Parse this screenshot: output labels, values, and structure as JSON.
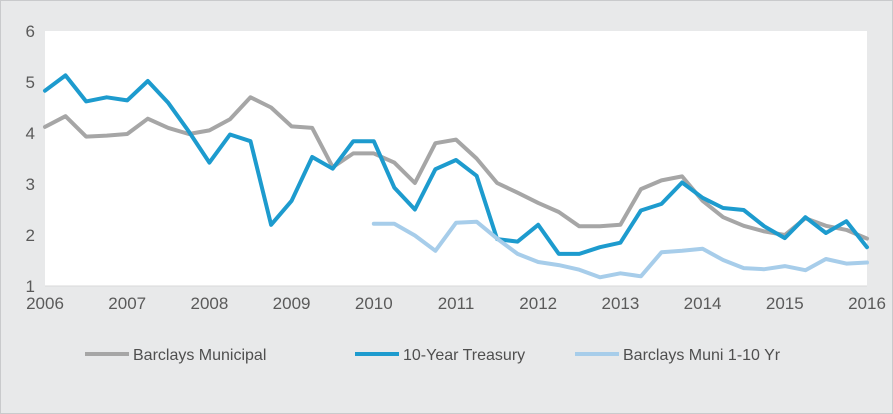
{
  "chart_data": {
    "type": "line",
    "xlim": [
      2006,
      2016
    ],
    "ylim": [
      1,
      6
    ],
    "x_ticks": [
      2006,
      2007,
      2008,
      2009,
      2010,
      2011,
      2012,
      2013,
      2014,
      2015,
      2016
    ],
    "x_tick_labels": [
      "2006",
      "2007",
      "2008",
      "2009",
      "2010",
      "2011",
      "2012",
      "2013",
      "2014",
      "2015",
      "2016"
    ],
    "y_ticks": [
      1,
      2,
      3,
      4,
      5,
      6
    ],
    "y_tick_labels": [
      "1",
      "2",
      "3",
      "4",
      "5",
      "6"
    ],
    "grid": false,
    "legend_position": "bottom",
    "series": [
      {
        "name": "Barclays Municipal",
        "color": "#a6a6a6",
        "x": [
          2006.0,
          2006.25,
          2006.5,
          2006.75,
          2007.0,
          2007.25,
          2007.5,
          2007.75,
          2008.0,
          2008.25,
          2008.5,
          2008.75,
          2009.0,
          2009.25,
          2009.5,
          2009.75,
          2010.0,
          2010.25,
          2010.5,
          2010.75,
          2011.0,
          2011.25,
          2011.5,
          2011.75,
          2012.0,
          2012.25,
          2012.5,
          2012.75,
          2013.0,
          2013.25,
          2013.5,
          2013.75,
          2014.0,
          2014.25,
          2014.5,
          2014.75,
          2015.0,
          2015.25,
          2015.5,
          2015.75,
          2016.0
        ],
        "values": [
          4.12,
          4.33,
          3.93,
          3.95,
          3.98,
          4.28,
          4.1,
          3.98,
          4.05,
          4.27,
          4.7,
          4.5,
          4.13,
          4.1,
          3.33,
          3.6,
          3.6,
          3.42,
          3.02,
          3.8,
          3.87,
          3.5,
          3.02,
          2.83,
          2.63,
          2.45,
          2.17,
          2.17,
          2.2,
          2.9,
          3.07,
          3.15,
          2.67,
          2.35,
          2.18,
          2.07,
          2.0,
          2.33,
          2.18,
          2.1,
          1.93
        ]
      },
      {
        "name": "10-Year Treasury",
        "color": "#1d9bce",
        "x": [
          2006.0,
          2006.25,
          2006.5,
          2006.75,
          2007.0,
          2007.25,
          2007.5,
          2007.75,
          2008.0,
          2008.25,
          2008.5,
          2008.75,
          2009.0,
          2009.25,
          2009.5,
          2009.75,
          2010.0,
          2010.25,
          2010.5,
          2010.75,
          2011.0,
          2011.25,
          2011.5,
          2011.75,
          2012.0,
          2012.25,
          2012.5,
          2012.75,
          2013.0,
          2013.25,
          2013.5,
          2013.75,
          2014.0,
          2014.25,
          2014.5,
          2014.75,
          2015.0,
          2015.25,
          2015.5,
          2015.75,
          2016.0
        ],
        "values": [
          4.83,
          5.13,
          4.62,
          4.7,
          4.64,
          5.02,
          4.59,
          4.03,
          3.42,
          3.97,
          3.84,
          2.2,
          2.67,
          3.53,
          3.3,
          3.84,
          3.84,
          2.93,
          2.5,
          3.29,
          3.47,
          3.16,
          1.92,
          1.87,
          2.2,
          1.63,
          1.63,
          1.76,
          1.85,
          2.48,
          2.61,
          3.03,
          2.73,
          2.53,
          2.49,
          2.17,
          1.94,
          2.35,
          2.04,
          2.27,
          1.76
        ]
      },
      {
        "name": "Barclays Muni 1-10 Yr",
        "color": "#a7cdea",
        "x": [
          2010.0,
          2010.25,
          2010.5,
          2010.75,
          2011.0,
          2011.25,
          2011.5,
          2011.75,
          2012.0,
          2012.25,
          2012.5,
          2012.75,
          2013.0,
          2013.25,
          2013.5,
          2013.75,
          2014.0,
          2014.25,
          2014.5,
          2014.75,
          2015.0,
          2015.25,
          2015.5,
          2015.75,
          2016.0
        ],
        "values": [
          2.22,
          2.22,
          1.99,
          1.69,
          2.24,
          2.26,
          1.93,
          1.63,
          1.47,
          1.41,
          1.32,
          1.17,
          1.25,
          1.19,
          1.66,
          1.69,
          1.73,
          1.51,
          1.35,
          1.33,
          1.39,
          1.31,
          1.53,
          1.44,
          1.46
        ]
      }
    ]
  }
}
